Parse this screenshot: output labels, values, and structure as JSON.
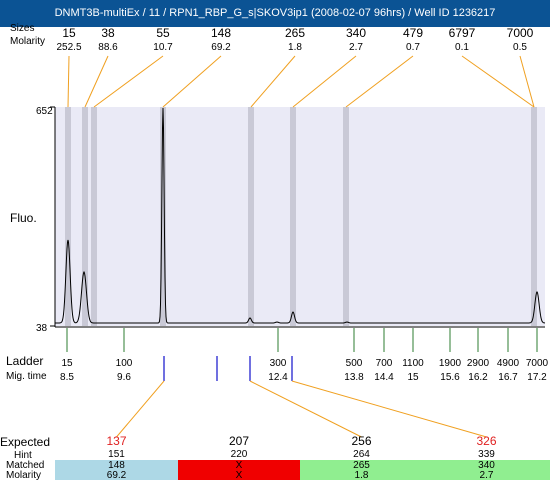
{
  "title": "DNMT3B-multiEx / 11 / RPN1_RBP_G_s|SKOV3ip1 (2008-02-07 96hrs) / Well ID 1236217",
  "header_labels": {
    "sizes": "Sizes",
    "molarity": "Molarity"
  },
  "fluo_label": "Fluo.",
  "ladder_label": "Ladder",
  "migtime_label": "Mig. time",
  "expected_label": "Expected",
  "hint_label": "Hint",
  "matched_label": "Matched",
  "molarity_label": "Molarity",
  "colors": {
    "band": "#c9c9d6",
    "plot_bg": "#eaeaf6",
    "leader": "#f0a020",
    "ladder_tick": "#2e7d32",
    "expected_tick": "#1010cc",
    "cyan": "#add8e6",
    "red": "#f00000",
    "green": "#90ee90"
  },
  "chart_data": {
    "type": "line",
    "ylabel": "Fluo.",
    "ylim": [
      38,
      652
    ],
    "y_ticks": [
      "652",
      "38"
    ],
    "peaks": [
      {
        "size": "15",
        "molarity": "252.5"
      },
      {
        "size": "38",
        "molarity": "88.6"
      },
      {
        "size": "55",
        "molarity": "10.7"
      },
      {
        "size": "148",
        "molarity": "69.2"
      },
      {
        "size": "265",
        "molarity": "1.8"
      },
      {
        "size": "340",
        "molarity": "2.7"
      },
      {
        "size": "479",
        "molarity": "0.7"
      },
      {
        "size": "6797",
        "molarity": "0.1"
      },
      {
        "size": "7000",
        "molarity": "0.5"
      }
    ],
    "ladder": [
      {
        "size": "15",
        "time": "8.5"
      },
      {
        "size": "100",
        "time": "9.6"
      },
      {
        "size": "300",
        "time": "12.4"
      },
      {
        "size": "500",
        "time": "13.8"
      },
      {
        "size": "700",
        "time": "14.4"
      },
      {
        "size": "1100",
        "time": "15"
      },
      {
        "size": "1900",
        "time": "15.6"
      },
      {
        "size": "2900",
        "time": "16.2"
      },
      {
        "size": "4900",
        "time": "16.7"
      },
      {
        "size": "7000",
        "time": "17.2"
      }
    ],
    "expected": [
      {
        "expected": "137",
        "hint": "151",
        "matched": "148",
        "molarity": "69.2",
        "status": "cyan",
        "highlight": true
      },
      {
        "expected": "207",
        "hint": "220",
        "matched": "X",
        "molarity": "X",
        "status": "red",
        "highlight": false
      },
      {
        "expected": "256",
        "hint": "264",
        "matched": "265",
        "molarity": "1.8",
        "status": "green",
        "highlight": false
      },
      {
        "expected": "326",
        "hint": "339",
        "matched": "340",
        "molarity": "2.7",
        "status": "green",
        "highlight": true
      }
    ]
  }
}
